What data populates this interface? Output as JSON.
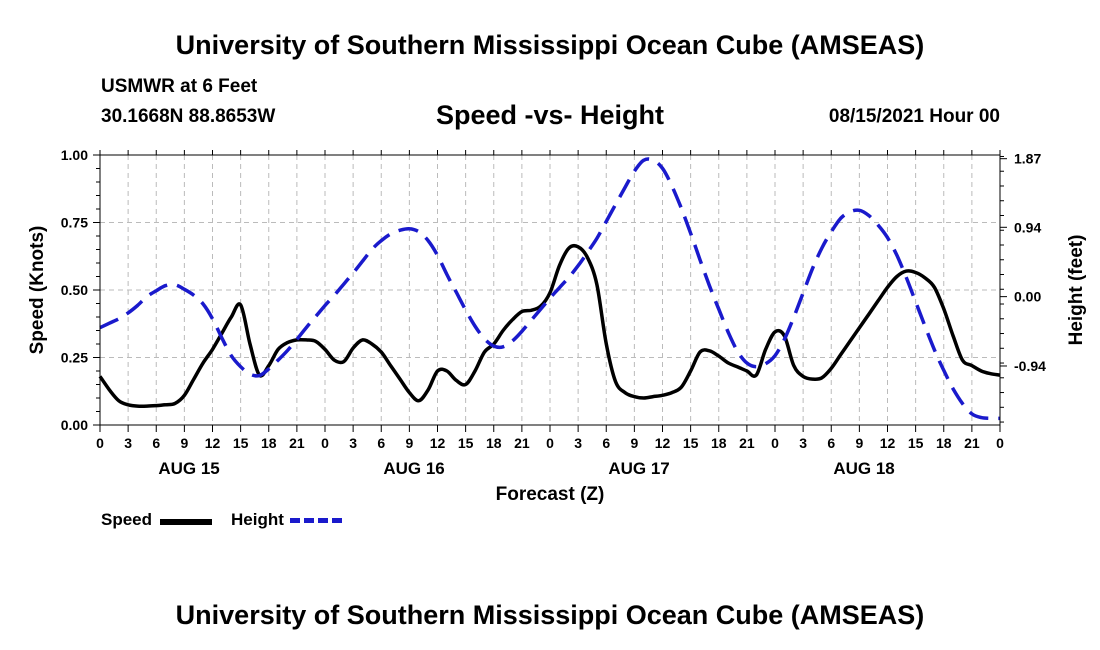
{
  "header": {
    "title": "University of Southern Mississippi Ocean Cube (AMSEAS)",
    "station": "USMWR at 6 Feet",
    "coords": "30.1668N  88.8653W",
    "subtitle": "Speed -vs- Height",
    "date": "08/15/2021 Hour 00"
  },
  "footer": {
    "title": "University of Southern Mississippi Ocean Cube (AMSEAS)"
  },
  "legend": {
    "speed_label": "Speed",
    "height_label": "Height"
  },
  "colors": {
    "speed": "#000000",
    "height": "#1a1acc",
    "grid": "#bbbbbb"
  },
  "chart_data": {
    "type": "line",
    "title": "Speed -vs- Height",
    "xlabel": "Forecast (Z)",
    "ylabel": "Speed (Knots)",
    "y2label": "Height (feet)",
    "xlim": [
      0,
      96
    ],
    "ylim": [
      0,
      1
    ],
    "y2lim": [
      -1.74,
      1.92
    ],
    "x_ticks": [
      0,
      3,
      6,
      9,
      12,
      15,
      18,
      21,
      24,
      27,
      30,
      33,
      36,
      39,
      42,
      45,
      48,
      51,
      54,
      57,
      60,
      63,
      66,
      69,
      72,
      75,
      78,
      81,
      84,
      87,
      90,
      93,
      96
    ],
    "x_tick_labels": [
      "0",
      "3",
      "6",
      "9",
      "12",
      "15",
      "18",
      "21",
      "0",
      "3",
      "6",
      "9",
      "12",
      "15",
      "18",
      "21",
      "0",
      "3",
      "6",
      "9",
      "12",
      "15",
      "18",
      "21",
      "0",
      "3",
      "6",
      "9",
      "12",
      "15",
      "18",
      "21",
      "0"
    ],
    "day_labels": [
      {
        "x": 9.5,
        "label": "AUG 15"
      },
      {
        "x": 33.5,
        "label": "AUG 16"
      },
      {
        "x": 57.5,
        "label": "AUG 17"
      },
      {
        "x": 81.5,
        "label": "AUG 18"
      }
    ],
    "y_ticks": [
      0,
      0.25,
      0.5,
      0.75,
      1.0
    ],
    "y_tick_labels": [
      "0.00",
      "0.25",
      "0.50",
      "0.75",
      "1.00"
    ],
    "y2_ticks": [
      -0.94,
      0.0,
      0.94,
      1.87
    ],
    "y2_tick_labels": [
      "-0.94",
      "0.00",
      "0.94",
      "1.87"
    ],
    "grid": true,
    "series": [
      {
        "name": "Speed",
        "axis": "left",
        "style": "solid",
        "x": [
          0,
          1,
          2,
          3,
          4,
          5,
          6,
          7,
          8,
          9,
          10,
          11,
          12,
          13,
          14,
          15,
          16,
          17,
          18,
          19,
          20,
          21,
          22,
          23,
          24,
          25,
          26,
          27,
          28,
          29,
          30,
          31,
          32,
          33,
          34,
          35,
          36,
          37,
          38,
          39,
          40,
          41,
          42,
          43,
          44,
          45,
          46,
          47,
          48,
          49,
          50,
          51,
          52,
          53,
          54,
          55,
          56,
          57,
          58,
          59,
          60,
          61,
          62,
          63,
          64,
          65,
          66,
          67,
          68,
          69,
          70,
          71,
          72,
          73,
          74,
          75,
          76,
          77,
          78,
          79,
          80,
          81,
          82,
          83,
          84,
          85,
          86,
          87,
          88,
          89,
          90,
          91,
          92,
          93,
          94,
          95,
          96
        ],
        "values": [
          0.18,
          0.13,
          0.09,
          0.075,
          0.07,
          0.07,
          0.072,
          0.075,
          0.08,
          0.11,
          0.17,
          0.23,
          0.28,
          0.34,
          0.4,
          0.445,
          0.3,
          0.185,
          0.22,
          0.28,
          0.305,
          0.315,
          0.315,
          0.31,
          0.28,
          0.24,
          0.235,
          0.285,
          0.315,
          0.3,
          0.27,
          0.22,
          0.17,
          0.12,
          0.09,
          0.13,
          0.2,
          0.2,
          0.165,
          0.15,
          0.2,
          0.27,
          0.3,
          0.35,
          0.39,
          0.42,
          0.425,
          0.44,
          0.49,
          0.59,
          0.655,
          0.66,
          0.62,
          0.52,
          0.3,
          0.16,
          0.12,
          0.105,
          0.1,
          0.105,
          0.11,
          0.12,
          0.14,
          0.2,
          0.27,
          0.275,
          0.255,
          0.23,
          0.215,
          0.2,
          0.185,
          0.28,
          0.345,
          0.33,
          0.22,
          0.18,
          0.17,
          0.175,
          0.21,
          0.26,
          0.31,
          0.36,
          0.41,
          0.46,
          0.51,
          0.55,
          0.57,
          0.565,
          0.545,
          0.51,
          0.43,
          0.33,
          0.24,
          0.22,
          0.2,
          0.19,
          0.185
        ]
      },
      {
        "name": "Height",
        "axis": "right",
        "style": "dashed",
        "x": [
          0,
          1,
          2,
          3,
          4,
          5,
          6,
          7,
          8,
          9,
          10,
          11,
          12,
          13,
          14,
          15,
          16,
          17,
          18,
          19,
          20,
          21,
          22,
          23,
          24,
          25,
          26,
          27,
          28,
          29,
          30,
          31,
          32,
          33,
          34,
          35,
          36,
          37,
          38,
          39,
          40,
          41,
          42,
          43,
          44,
          45,
          46,
          47,
          48,
          49,
          50,
          51,
          52,
          53,
          54,
          55,
          56,
          57,
          58,
          59,
          60,
          61,
          62,
          63,
          64,
          65,
          66,
          67,
          68,
          69,
          70,
          71,
          72,
          73,
          74,
          75,
          76,
          77,
          78,
          79,
          80,
          81,
          82,
          83,
          84,
          85,
          86,
          87,
          88,
          89,
          90,
          91,
          92,
          93,
          94,
          95,
          96
        ],
        "values": [
          -0.42,
          -0.36,
          -0.3,
          -0.22,
          -0.12,
          0.0,
          0.08,
          0.15,
          0.16,
          0.1,
          0.02,
          -0.1,
          -0.3,
          -0.56,
          -0.8,
          -0.95,
          -1.05,
          -1.07,
          -0.98,
          -0.86,
          -0.73,
          -0.58,
          -0.42,
          -0.27,
          -0.12,
          0.02,
          0.17,
          0.32,
          0.48,
          0.64,
          0.76,
          0.85,
          0.9,
          0.92,
          0.88,
          0.76,
          0.56,
          0.3,
          0.06,
          -0.18,
          -0.4,
          -0.57,
          -0.67,
          -0.68,
          -0.6,
          -0.47,
          -0.32,
          -0.17,
          -0.02,
          0.12,
          0.26,
          0.42,
          0.6,
          0.79,
          1.02,
          1.25,
          1.48,
          1.7,
          1.85,
          1.85,
          1.74,
          1.5,
          1.2,
          0.86,
          0.5,
          0.15,
          -0.17,
          -0.48,
          -0.74,
          -0.9,
          -0.95,
          -0.91,
          -0.8,
          -0.58,
          -0.28,
          0.05,
          0.38,
          0.66,
          0.88,
          1.06,
          1.15,
          1.17,
          1.1,
          0.97,
          0.8,
          0.56,
          0.26,
          -0.07,
          -0.4,
          -0.72,
          -1.0,
          -1.25,
          -1.45,
          -1.59,
          -1.64,
          -1.65,
          -1.65
        ]
      }
    ]
  }
}
